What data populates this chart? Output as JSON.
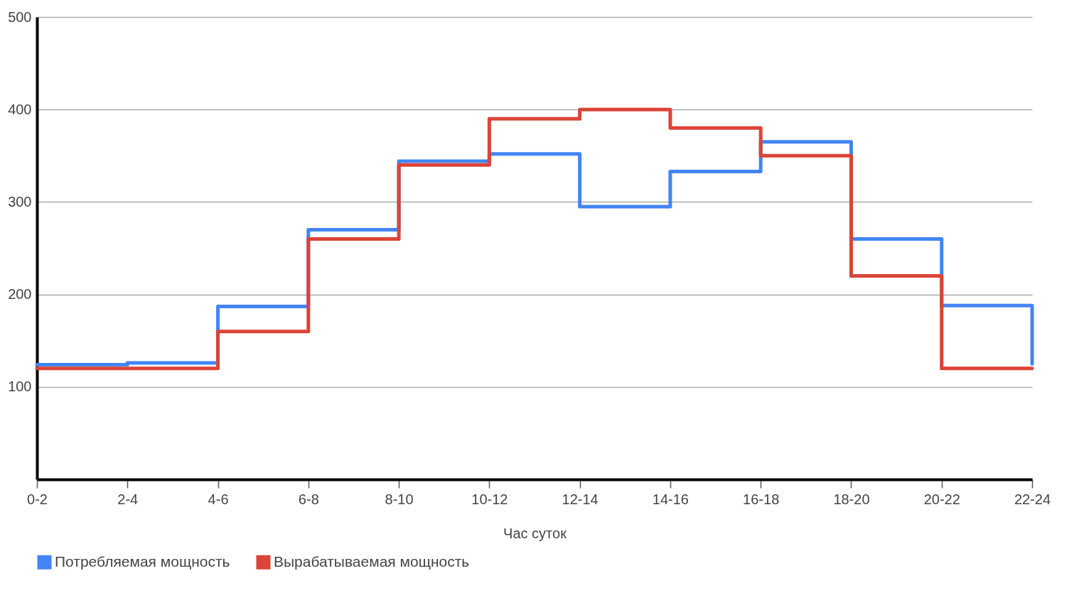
{
  "chart_data": {
    "type": "step",
    "xlabel": "Час суток",
    "categories": [
      "0-2",
      "2-4",
      "4-6",
      "6-8",
      "8-10",
      "10-12",
      "12-14",
      "14-16",
      "16-18",
      "18-20",
      "20-22",
      "22-24"
    ],
    "series": [
      {
        "name": "Потребляемая мощность",
        "color": "#4285f4",
        "values": [
          124,
          126,
          187,
          270,
          344,
          352,
          295,
          333,
          365,
          260,
          188,
          125
        ]
      },
      {
        "name": "Вырабатываемая мощность",
        "color": "#db4437",
        "values": [
          120,
          120,
          160,
          260,
          340,
          390,
          400,
          380,
          350,
          220,
          120,
          120
        ]
      }
    ],
    "ylim": [
      0,
      500
    ],
    "yticks": [
      100,
      200,
      300,
      400,
      500
    ],
    "grid": "y",
    "legend": "bottom",
    "marker": "none",
    "line_style": "solid"
  }
}
